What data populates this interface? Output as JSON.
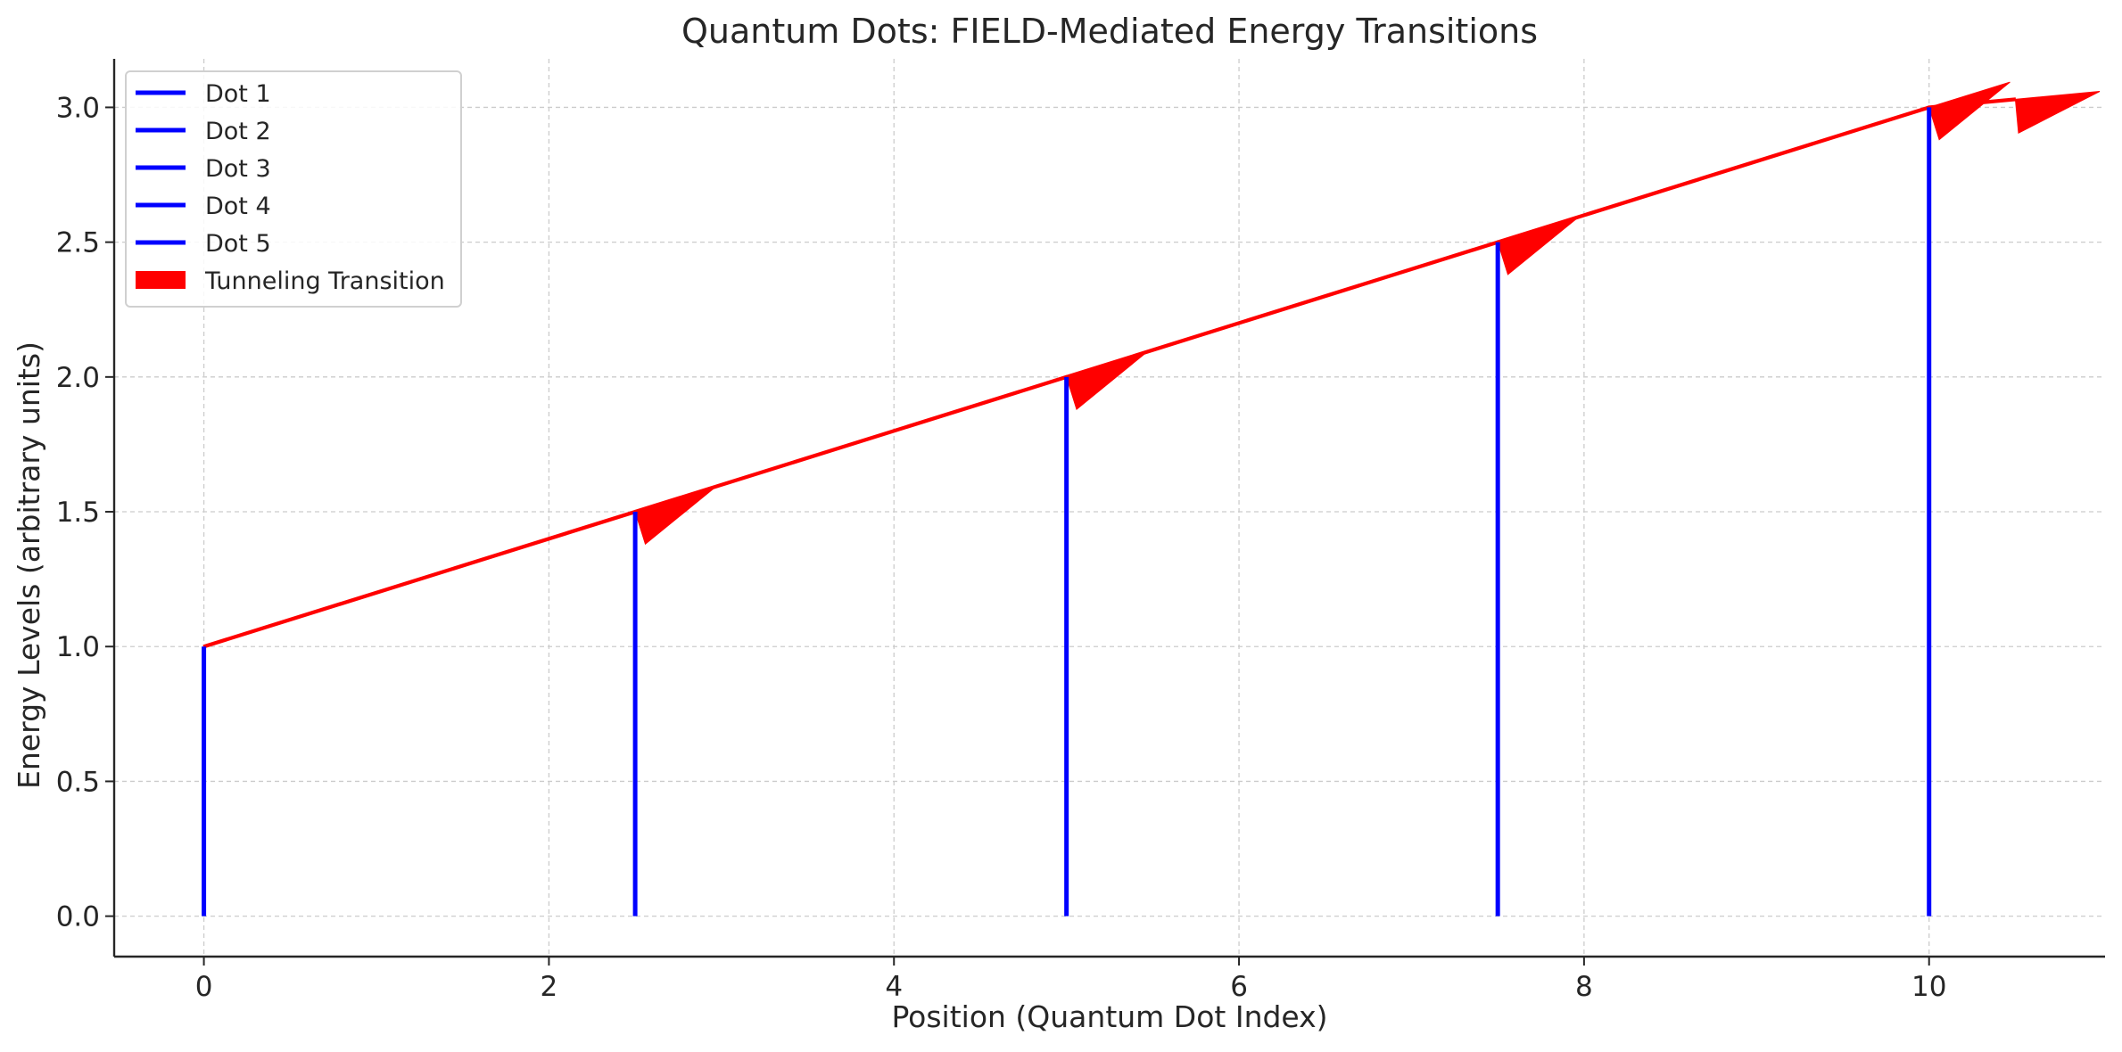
{
  "chart_data": {
    "type": "line",
    "title": "Quantum Dots: FIELD-Mediated Energy Transitions",
    "xlabel": "Position (Quantum Dot Index)",
    "ylabel": "Energy Levels (arbitrary units)",
    "xlim": [
      -0.52,
      11.02
    ],
    "ylim": [
      -0.15,
      3.18
    ],
    "xticks": [
      0,
      2,
      4,
      6,
      8,
      10
    ],
    "xtick_labels": [
      "0",
      "2",
      "4",
      "6",
      "8",
      "10"
    ],
    "yticks": [
      0.0,
      0.5,
      1.0,
      1.5,
      2.0,
      2.5,
      3.0
    ],
    "ytick_labels": [
      "0.0",
      "0.5",
      "1.0",
      "1.5",
      "2.0",
      "2.5",
      "3.0"
    ],
    "grid": true,
    "legend_position": "top-left",
    "colors": {
      "dots": "#0000ff",
      "transition": "#ff0000",
      "grid": "#cccccc",
      "axis": "#262626"
    },
    "series": [
      {
        "name": "Dot 1",
        "x": 0,
        "y_range": [
          0,
          1.0
        ]
      },
      {
        "name": "Dot 2",
        "x": 2.5,
        "y_range": [
          0,
          1.5
        ]
      },
      {
        "name": "Dot 3",
        "x": 5.0,
        "y_range": [
          0,
          2.0
        ]
      },
      {
        "name": "Dot 4",
        "x": 7.5,
        "y_range": [
          0,
          2.5
        ]
      },
      {
        "name": "Dot 5",
        "x": 10.0,
        "y_range": [
          0,
          3.0
        ]
      }
    ],
    "transitions": {
      "name": "Tunneling Transition",
      "arrows": [
        {
          "from": [
            0,
            1.0
          ],
          "to": [
            2.5,
            1.5
          ]
        },
        {
          "from": [
            2.5,
            1.5
          ],
          "to": [
            5.0,
            2.0
          ]
        },
        {
          "from": [
            5.0,
            2.0
          ],
          "to": [
            7.5,
            2.5
          ]
        },
        {
          "from": [
            7.5,
            2.5
          ],
          "to": [
            10.0,
            3.0
          ]
        },
        {
          "from": [
            10.0,
            3.0
          ],
          "to": [
            10.5,
            3.03
          ]
        }
      ]
    }
  }
}
